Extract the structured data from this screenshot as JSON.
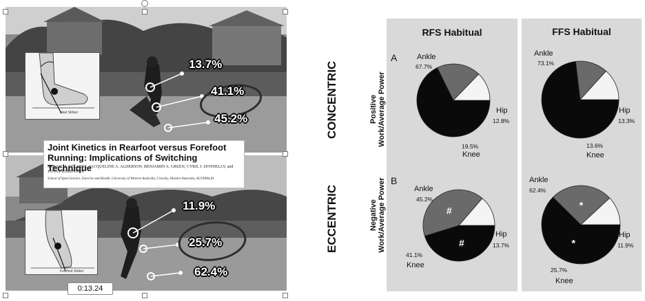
{
  "video": {
    "paper": {
      "title": "Joint Kinetics in Rearfoot versus Forefoot Running: Implications of Switching Technique",
      "authors": "SARAH M. STEARNE, JACQUELINE A. ALDERSON, BENJAMIN A. GREEN, CYRIL J. DONNELLY, and JONAS RUBENSON",
      "affiliation": "School of Sport Science, Exercise and Health, University of Western Australia, Crawley, Western Australia, AUSTRALIA"
    },
    "top": {
      "inset_caption": "Heel Striker",
      "labels": [
        "13.7%",
        "41.1%",
        "45.2%"
      ]
    },
    "bottom": {
      "inset_caption": "Forefoot Striker",
      "labels": [
        "11.9%",
        "25.7%",
        "62.4%"
      ]
    },
    "timecode": "0:13.24"
  },
  "side_labels": {
    "concentric": "CONCENTRIC",
    "eccentric": "ECCENTRIC"
  },
  "chart_data": {
    "type": "pie",
    "columns": [
      "RFS Habitual",
      "FFS Habitual"
    ],
    "rows": [
      {
        "letter": "A",
        "label_line1": "Positive",
        "label_line2": "Work/Average Power"
      },
      {
        "letter": "B",
        "label_line1": "Negative",
        "label_line2": "Work/Average Power"
      }
    ],
    "categories": [
      "Ankle",
      "Hip",
      "Knee"
    ],
    "colors": {
      "Ankle": "#0a0a0a",
      "Hip": "#f4f4f4",
      "Knee": "#6a6a6a"
    },
    "pies": [
      {
        "row": 0,
        "col": 0,
        "values": {
          "Ankle": 67.7,
          "Hip": 12.8,
          "Knee": 19.5
        },
        "labels": {
          "Ankle": "67.7%",
          "Hip": "12.8%",
          "Knee": "19.5%"
        },
        "marks": {}
      },
      {
        "row": 0,
        "col": 1,
        "values": {
          "Ankle": 73.1,
          "Hip": 13.3,
          "Knee": 13.6
        },
        "labels": {
          "Ankle": "73.1%",
          "Hip": "13.3%",
          "Knee": "13.6%"
        },
        "marks": {}
      },
      {
        "row": 1,
        "col": 0,
        "values": {
          "Ankle": 45.2,
          "Hip": 13.7,
          "Knee": 41.1
        },
        "labels": {
          "Ankle": "45.2%",
          "Hip": "13.7%",
          "Knee": "41.1%"
        },
        "marks": {
          "Ankle": "#",
          "Knee": "#"
        }
      },
      {
        "row": 1,
        "col": 1,
        "values": {
          "Ankle": 62.4,
          "Hip": 11.9,
          "Knee": 25.7
        },
        "labels": {
          "Ankle": "62.4%",
          "Hip": "11.9%",
          "Knee": "25.7%"
        },
        "marks": {
          "Ankle": "*",
          "Knee": "*"
        }
      }
    ]
  }
}
